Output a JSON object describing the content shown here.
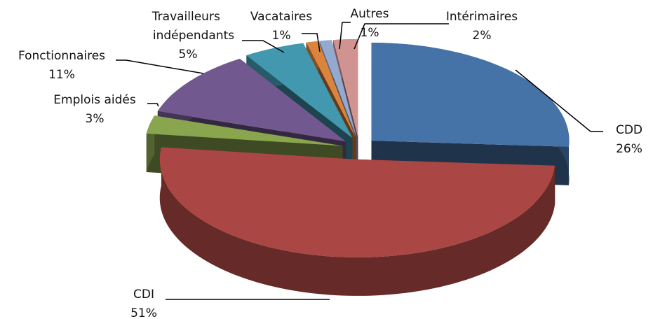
{
  "chart_data": {
    "type": "pie",
    "categories": [
      "CDD",
      "CDI",
      "Emplois aidés",
      "Fonctionnaires",
      "Travailleurs indépendants",
      "Vacataires",
      "Autres",
      "Intérimaires"
    ],
    "values": [
      26,
      51,
      3,
      11,
      5,
      1,
      1,
      2
    ],
    "value_labels": [
      "26%",
      "51%",
      "3%",
      "11%",
      "5%",
      "1%",
      "1%",
      "2%"
    ],
    "colors": [
      "#4572a7",
      "#aa4643",
      "#89a54e",
      "#71588f",
      "#4198af",
      "#db843d",
      "#93a9cf",
      "#d19392"
    ],
    "three_d": true,
    "exploded": true
  }
}
